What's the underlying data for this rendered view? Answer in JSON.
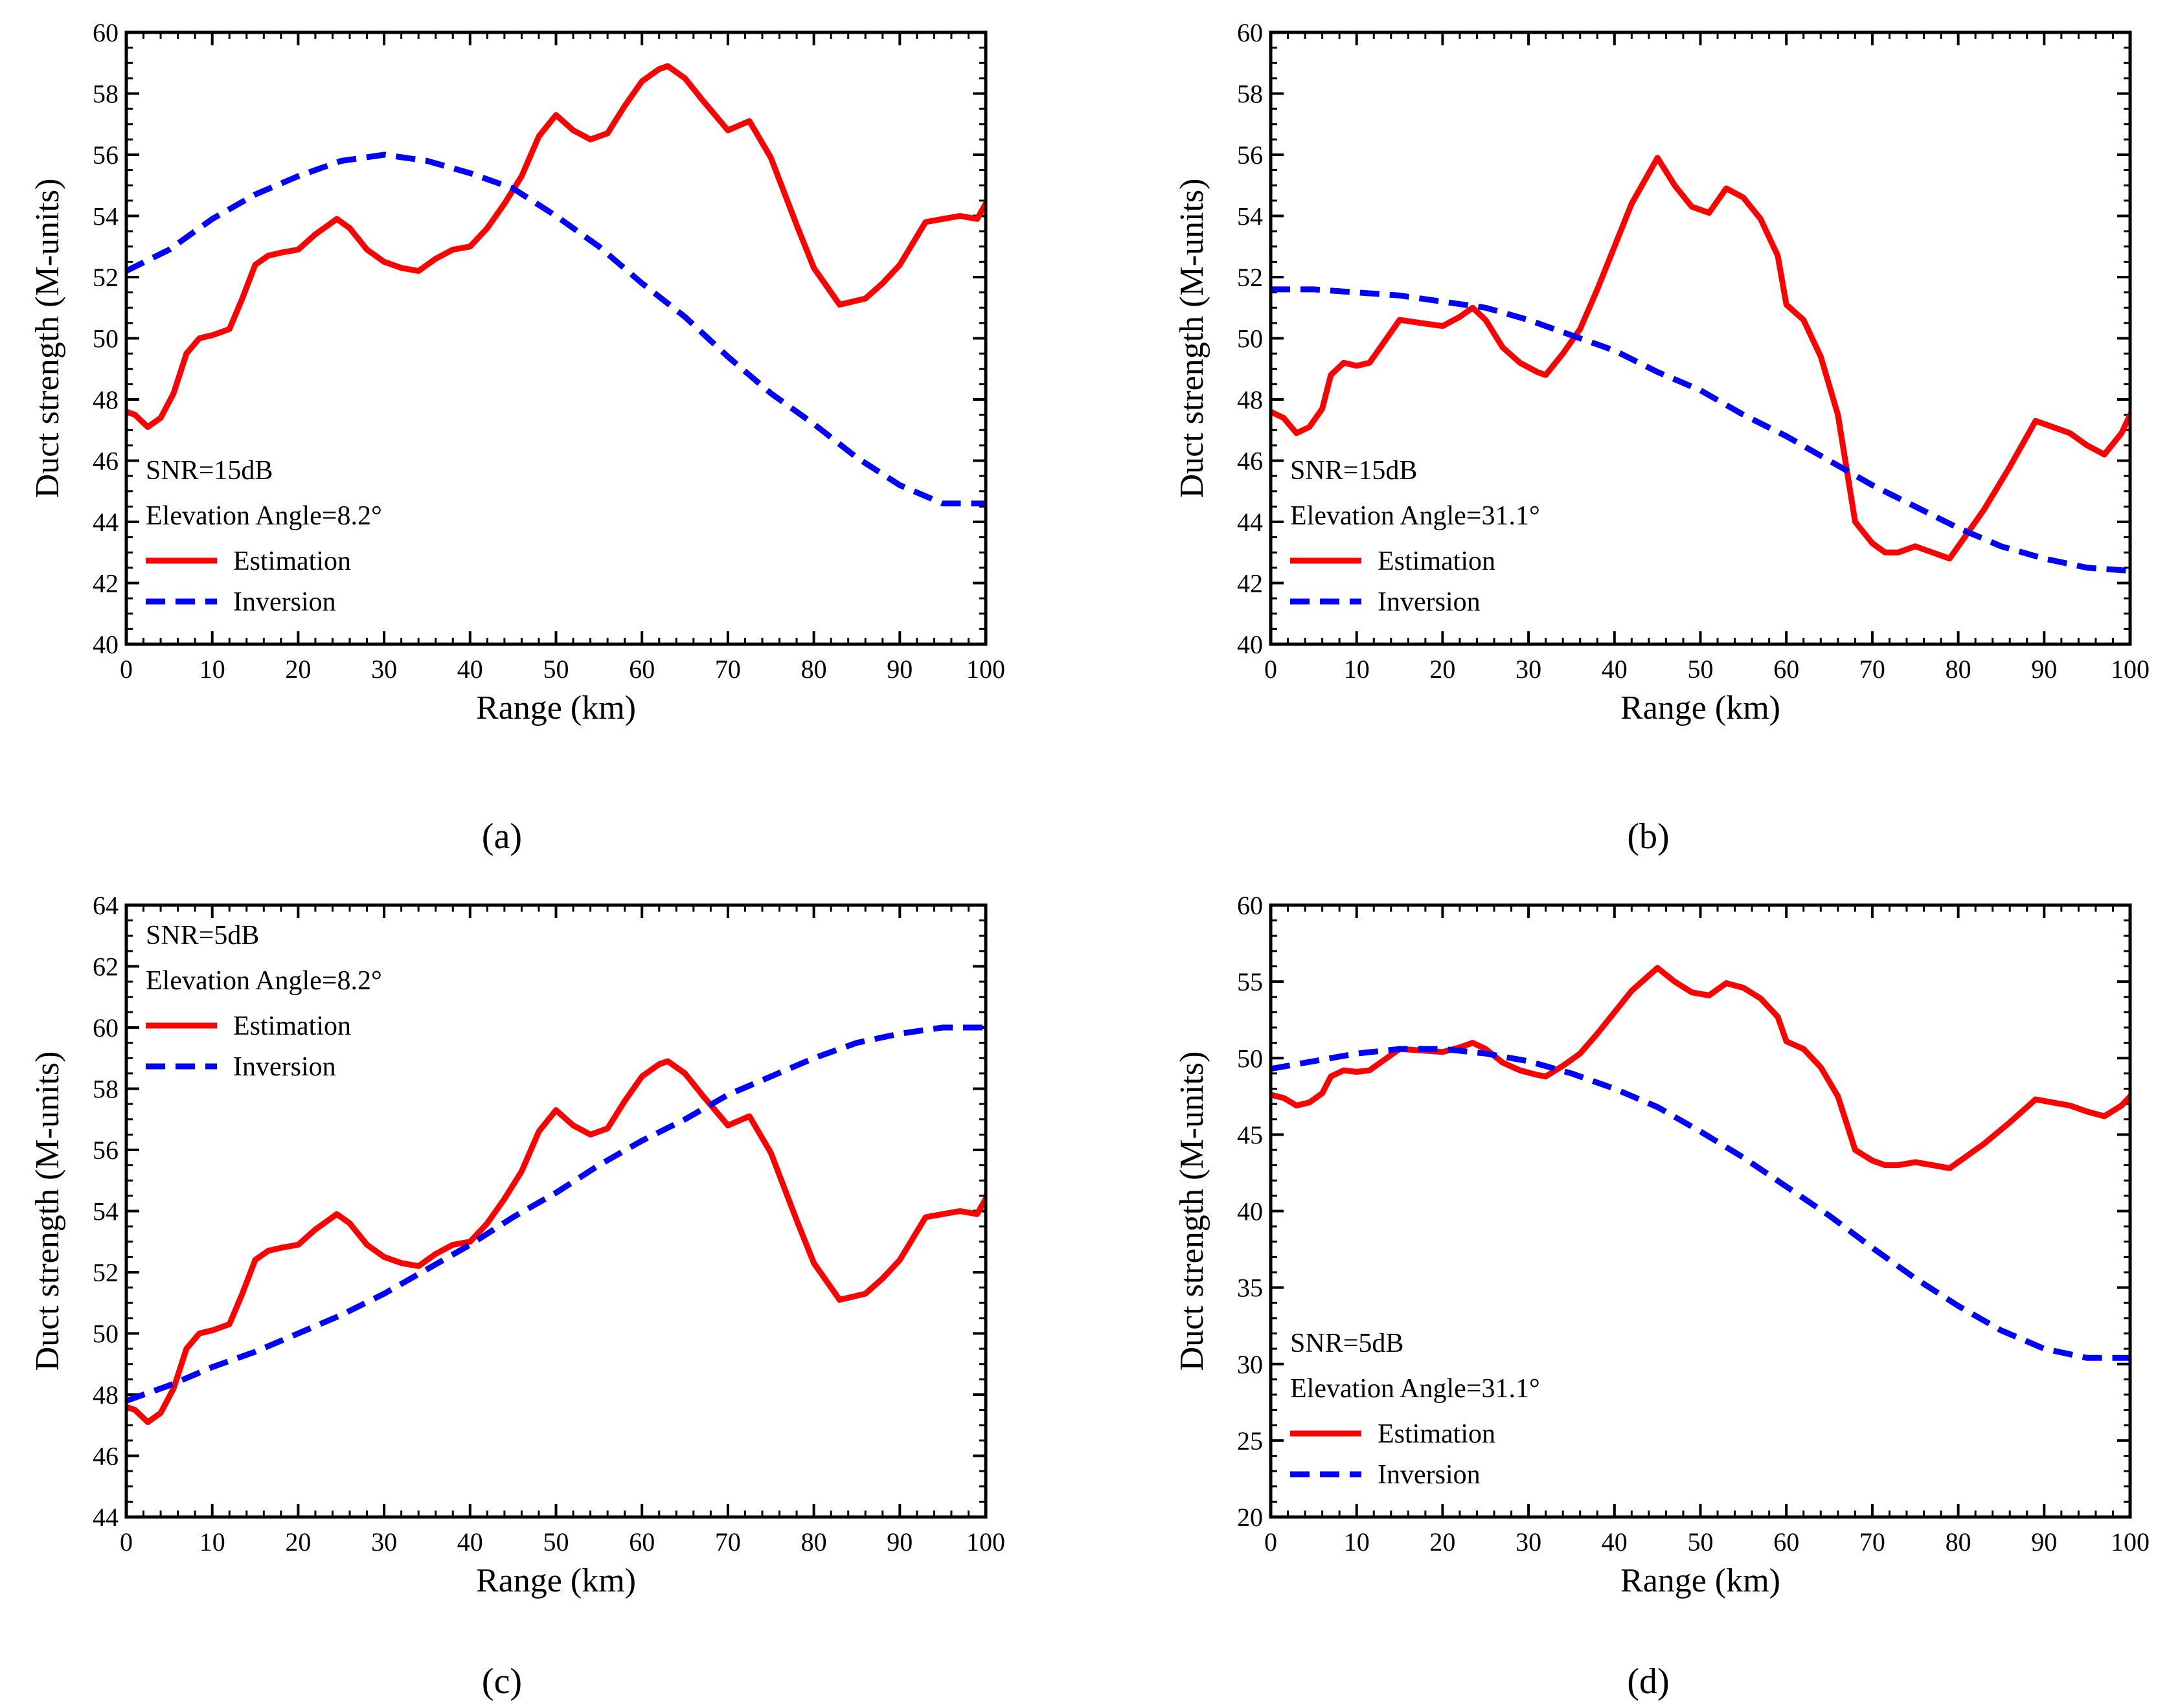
{
  "figure": {
    "line_color_estimation": "#ff0000",
    "line_color_inversion": "#0000ff"
  },
  "chart_data": [
    {
      "type": "line",
      "panel": "a",
      "panel_label": "(a)",
      "xlabel": "Range (km)",
      "ylabel": "Duct strength (M-units)",
      "xlim": [
        0,
        100
      ],
      "ylim": [
        40,
        60
      ],
      "xticks": [
        0,
        10,
        20,
        30,
        40,
        50,
        60,
        70,
        80,
        90,
        100
      ],
      "yticks": [
        40,
        42,
        44,
        46,
        48,
        50,
        52,
        54,
        56,
        58,
        60
      ],
      "annotations": [
        "SNR=15dB",
        "Elevation Angle=8.2°"
      ],
      "legend": [
        "Estimation",
        "Inversion"
      ],
      "legend_position": "bottom-left",
      "series": [
        {
          "name": "Estimation",
          "style": "solid",
          "color": "#ff0000",
          "x": [
            0,
            1,
            2.5,
            4,
            5.5,
            7,
            8.5,
            10,
            12,
            13.5,
            15,
            16.5,
            18,
            20,
            22,
            24.5,
            26,
            28,
            30,
            32,
            34,
            36,
            38,
            40,
            42,
            44,
            46,
            48,
            50,
            52,
            54,
            56,
            58,
            60,
            62,
            63,
            65,
            67,
            70,
            72.5,
            75,
            78,
            80,
            83,
            86,
            88,
            90,
            93,
            95,
            97,
            99,
            100
          ],
          "y": [
            47.6,
            47.5,
            47.1,
            47.4,
            48.2,
            49.5,
            50,
            50.1,
            50.3,
            51.3,
            52.4,
            52.7,
            52.8,
            52.9,
            53.4,
            53.9,
            53.6,
            52.9,
            52.5,
            52.3,
            52.2,
            52.6,
            52.9,
            53.0,
            53.6,
            54.4,
            55.3,
            56.6,
            57.3,
            56.8,
            56.5,
            56.7,
            57.6,
            58.4,
            58.8,
            58.9,
            58.5,
            57.8,
            56.8,
            57.1,
            55.9,
            53.7,
            52.3,
            51.1,
            51.3,
            51.8,
            52.4,
            53.8,
            53.9,
            54,
            53.9,
            54.4
          ]
        },
        {
          "name": "Inversion",
          "style": "dashed",
          "color": "#0000ff",
          "x": [
            0,
            5,
            10,
            15,
            20,
            25,
            30,
            35,
            40,
            45,
            50,
            55,
            60,
            65,
            70,
            75,
            80,
            85,
            90,
            95,
            100
          ],
          "y": [
            52.2,
            52.9,
            53.9,
            54.7,
            55.3,
            55.8,
            56.0,
            55.8,
            55.4,
            54.9,
            54.0,
            53.0,
            51.8,
            50.7,
            49.4,
            48.2,
            47.2,
            46.1,
            45.2,
            44.6,
            44.6
          ]
        }
      ]
    },
    {
      "type": "line",
      "panel": "b",
      "panel_label": "(b)",
      "xlabel": "Range (km)",
      "ylabel": "Duct strength (M-units)",
      "xlim": [
        0,
        100
      ],
      "ylim": [
        40,
        60
      ],
      "xticks": [
        0,
        10,
        20,
        30,
        40,
        50,
        60,
        70,
        80,
        90,
        100
      ],
      "yticks": [
        40,
        42,
        44,
        46,
        48,
        50,
        52,
        54,
        56,
        58,
        60
      ],
      "annotations": [
        "SNR=15dB",
        "Elevation Angle=31.1°"
      ],
      "legend": [
        "Estimation",
        "Inversion"
      ],
      "legend_position": "bottom-left",
      "series": [
        {
          "name": "Estimation",
          "style": "solid",
          "color": "#ff0000",
          "x": [
            0,
            1.5,
            3,
            4.5,
            6,
            7,
            8.5,
            10,
            11.5,
            13,
            15,
            17.5,
            20,
            22,
            23.5,
            25,
            27,
            29,
            31,
            32,
            34,
            36,
            38,
            40,
            42,
            45,
            47,
            49,
            51,
            53,
            55,
            57,
            59,
            60,
            62,
            64,
            66,
            68,
            70,
            71.5,
            73,
            75,
            77,
            79,
            81,
            83,
            86,
            89,
            91,
            93,
            95,
            97,
            99,
            100
          ],
          "y": [
            47.6,
            47.4,
            46.9,
            47.1,
            47.7,
            48.8,
            49.2,
            49.1,
            49.2,
            49.8,
            50.6,
            50.5,
            50.4,
            50.7,
            51.0,
            50.6,
            49.7,
            49.2,
            48.9,
            48.8,
            49.5,
            50.3,
            51.6,
            53.0,
            54.4,
            55.9,
            55.0,
            54.3,
            54.1,
            54.9,
            54.6,
            53.9,
            52.7,
            51.1,
            50.6,
            49.4,
            47.5,
            44.0,
            43.3,
            43.0,
            43.0,
            43.2,
            43.0,
            42.8,
            43.6,
            44.4,
            45.8,
            47.3,
            47.1,
            46.9,
            46.5,
            46.2,
            46.9,
            47.5
          ]
        },
        {
          "name": "Inversion",
          "style": "dashed",
          "color": "#0000ff",
          "x": [
            0,
            5,
            10,
            15,
            20,
            25,
            30,
            35,
            40,
            45,
            50,
            55,
            60,
            65,
            70,
            75,
            80,
            85,
            90,
            95,
            100
          ],
          "y": [
            51.6,
            51.6,
            51.5,
            51.4,
            51.2,
            51.0,
            50.6,
            50.1,
            49.6,
            48.9,
            48.3,
            47.5,
            46.8,
            46.0,
            45.2,
            44.5,
            43.8,
            43.2,
            42.8,
            42.5,
            42.4
          ]
        }
      ]
    },
    {
      "type": "line",
      "panel": "c",
      "panel_label": "(c)",
      "xlabel": "Range (km)",
      "ylabel": "Duct strength (M-units)",
      "xlim": [
        0,
        100
      ],
      "ylim": [
        44,
        64
      ],
      "xticks": [
        0,
        10,
        20,
        30,
        40,
        50,
        60,
        70,
        80,
        90,
        100
      ],
      "yticks": [
        44,
        46,
        48,
        50,
        52,
        54,
        56,
        58,
        60,
        62,
        64
      ],
      "annotations": [
        "SNR=5dB",
        "Elevation Angle=8.2°"
      ],
      "legend": [
        "Estimation",
        "Inversion"
      ],
      "legend_position": "top-left",
      "series": [
        {
          "name": "Estimation",
          "style": "solid",
          "color": "#ff0000",
          "x": [
            0,
            1,
            2.5,
            4,
            5.5,
            7,
            8.5,
            10,
            12,
            13.5,
            15,
            16.5,
            18,
            20,
            22,
            24.5,
            26,
            28,
            30,
            32,
            34,
            36,
            38,
            40,
            42,
            44,
            46,
            48,
            50,
            52,
            54,
            56,
            58,
            60,
            62,
            63,
            65,
            67,
            70,
            72.5,
            75,
            78,
            80,
            83,
            86,
            88,
            90,
            93,
            95,
            97,
            99,
            100
          ],
          "y": [
            47.6,
            47.5,
            47.1,
            47.4,
            48.2,
            49.5,
            50,
            50.1,
            50.3,
            51.3,
            52.4,
            52.7,
            52.8,
            52.9,
            53.4,
            53.9,
            53.6,
            52.9,
            52.5,
            52.3,
            52.2,
            52.6,
            52.9,
            53.0,
            53.6,
            54.4,
            55.3,
            56.6,
            57.3,
            56.8,
            56.5,
            56.7,
            57.6,
            58.4,
            58.8,
            58.9,
            58.5,
            57.8,
            56.8,
            57.1,
            55.9,
            53.7,
            52.3,
            51.1,
            51.3,
            51.8,
            52.4,
            53.8,
            53.9,
            54,
            53.9,
            54.4
          ]
        },
        {
          "name": "Inversion",
          "style": "dashed",
          "color": "#0000ff",
          "x": [
            0,
            5,
            10,
            15,
            20,
            25,
            30,
            35,
            40,
            45,
            50,
            55,
            60,
            65,
            70,
            75,
            80,
            85,
            90,
            95,
            100
          ],
          "y": [
            47.8,
            48.3,
            48.9,
            49.4,
            50.0,
            50.6,
            51.3,
            52.1,
            52.9,
            53.8,
            54.6,
            55.5,
            56.3,
            57.0,
            57.8,
            58.4,
            59.0,
            59.5,
            59.8,
            60.0,
            60.0
          ]
        }
      ]
    },
    {
      "type": "line",
      "panel": "d",
      "panel_label": "(d)",
      "xlabel": "Range (km)",
      "ylabel": "Duct strength (M-units)",
      "xlim": [
        0,
        100
      ],
      "ylim": [
        20,
        60
      ],
      "xticks": [
        0,
        10,
        20,
        30,
        40,
        50,
        60,
        70,
        80,
        90,
        100
      ],
      "yticks": [
        20,
        25,
        30,
        35,
        40,
        45,
        50,
        55,
        60
      ],
      "annotations": [
        "SNR=5dB",
        "Elevation Angle=31.1°"
      ],
      "legend": [
        "Estimation",
        "Inversion"
      ],
      "legend_position": "bottom-left",
      "series": [
        {
          "name": "Estimation",
          "style": "solid",
          "color": "#ff0000",
          "x": [
            0,
            1.5,
            3,
            4.5,
            6,
            7,
            8.5,
            10,
            11.5,
            13,
            15,
            17.5,
            20,
            22,
            23.5,
            25,
            27,
            29,
            31,
            32,
            34,
            36,
            38,
            40,
            42,
            45,
            47,
            49,
            51,
            53,
            55,
            57,
            59,
            60,
            62,
            64,
            66,
            68,
            70,
            71.5,
            73,
            75,
            77,
            79,
            81,
            83,
            86,
            89,
            91,
            93,
            95,
            97,
            99,
            100
          ],
          "y": [
            47.6,
            47.4,
            46.9,
            47.1,
            47.7,
            48.8,
            49.2,
            49.1,
            49.2,
            49.8,
            50.6,
            50.5,
            50.4,
            50.7,
            51.0,
            50.6,
            49.7,
            49.2,
            48.9,
            48.8,
            49.5,
            50.3,
            51.6,
            53.0,
            54.4,
            55.9,
            55.0,
            54.3,
            54.1,
            54.9,
            54.6,
            53.9,
            52.7,
            51.1,
            50.6,
            49.4,
            47.5,
            44.0,
            43.3,
            43.0,
            43.0,
            43.2,
            43.0,
            42.8,
            43.6,
            44.4,
            45.8,
            47.3,
            47.1,
            46.9,
            46.5,
            46.2,
            46.9,
            47.5
          ]
        },
        {
          "name": "Inversion",
          "style": "dashed",
          "color": "#0000ff",
          "x": [
            0,
            5,
            10,
            15,
            20,
            25,
            30,
            35,
            40,
            45,
            50,
            55,
            60,
            65,
            70,
            75,
            80,
            85,
            90,
            95,
            100
          ],
          "y": [
            49.3,
            49.8,
            50.3,
            50.6,
            50.6,
            50.3,
            49.8,
            49.0,
            48.0,
            46.8,
            45.2,
            43.5,
            41.6,
            39.7,
            37.6,
            35.6,
            33.8,
            32.2,
            31.0,
            30.4,
            30.4
          ]
        }
      ]
    }
  ]
}
